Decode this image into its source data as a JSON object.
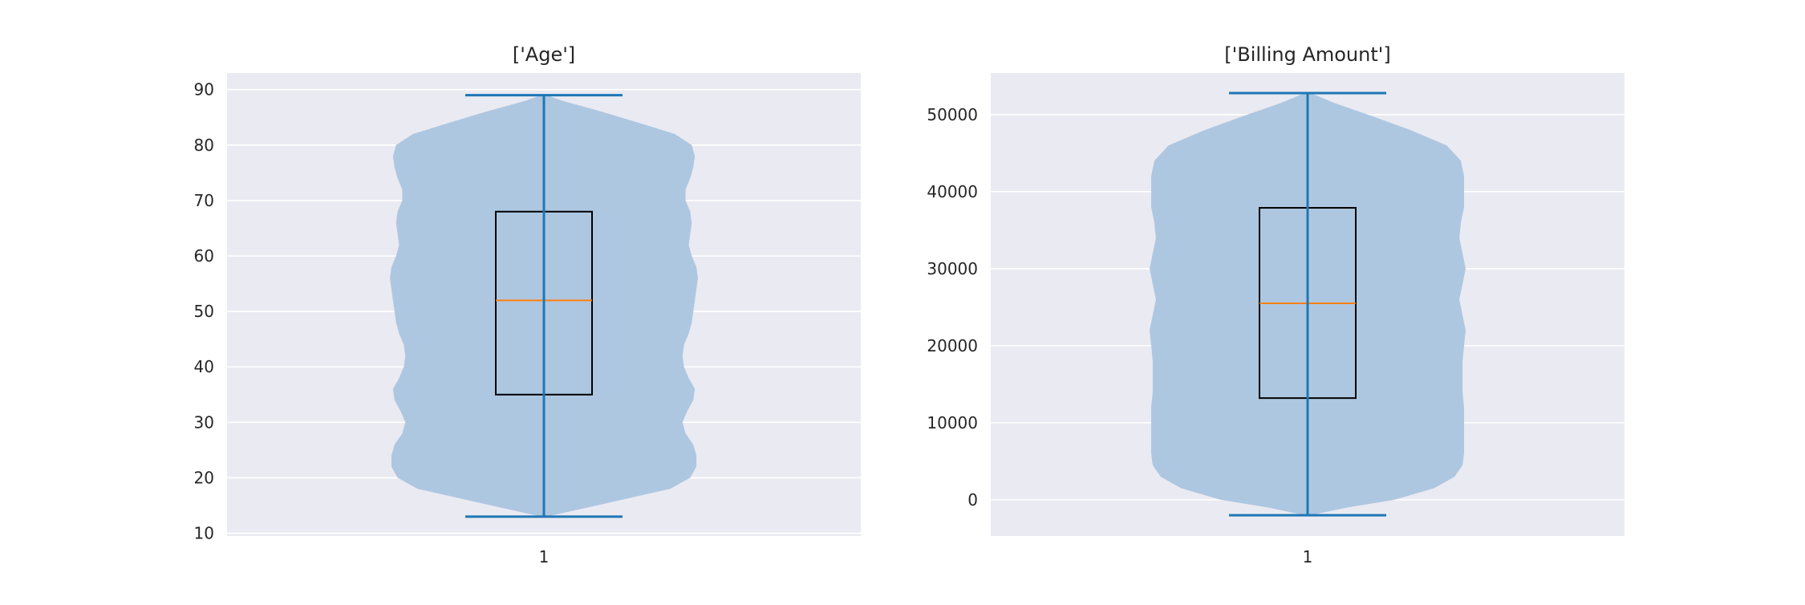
{
  "chart_data": [
    {
      "type": "violin",
      "title": "['Age']",
      "xlabel": "",
      "ylabel": "",
      "categories": [
        "1"
      ],
      "ylim": [
        9.5,
        93
      ],
      "yticks": [
        10,
        20,
        30,
        40,
        50,
        60,
        70,
        80,
        90
      ],
      "grid": true,
      "box": {
        "whisker_low": 13,
        "q1": 35,
        "median": 52,
        "q3": 68,
        "whisker_high": 89
      },
      "violin": {
        "min": 13,
        "max": 89,
        "profile": [
          [
            13,
            0.02
          ],
          [
            14,
            0.18
          ],
          [
            16,
            0.5
          ],
          [
            18,
            0.82
          ],
          [
            20,
            0.95
          ],
          [
            22,
            0.99
          ],
          [
            24,
            0.99
          ],
          [
            26,
            0.97
          ],
          [
            28,
            0.92
          ],
          [
            30,
            0.9
          ],
          [
            32,
            0.93
          ],
          [
            34,
            0.97
          ],
          [
            36,
            0.98
          ],
          [
            38,
            0.94
          ],
          [
            40,
            0.91
          ],
          [
            42,
            0.9
          ],
          [
            44,
            0.91
          ],
          [
            46,
            0.94
          ],
          [
            48,
            0.96
          ],
          [
            50,
            0.97
          ],
          [
            52,
            0.98
          ],
          [
            54,
            0.99
          ],
          [
            56,
            1.0
          ],
          [
            58,
            0.99
          ],
          [
            60,
            0.96
          ],
          [
            62,
            0.94
          ],
          [
            64,
            0.95
          ],
          [
            66,
            0.96
          ],
          [
            68,
            0.95
          ],
          [
            70,
            0.92
          ],
          [
            72,
            0.92
          ],
          [
            74,
            0.95
          ],
          [
            76,
            0.97
          ],
          [
            78,
            0.98
          ],
          [
            80,
            0.96
          ],
          [
            82,
            0.85
          ],
          [
            84,
            0.62
          ],
          [
            86,
            0.38
          ],
          [
            88,
            0.12
          ],
          [
            89,
            0.02
          ]
        ]
      },
      "colors": {
        "violin": "#aec7e1",
        "whisker": "#1f77b4",
        "median": "#ff7f0e",
        "box": "#000000"
      }
    },
    {
      "type": "violin",
      "title": "['Billing Amount']",
      "xlabel": "",
      "ylabel": "",
      "categories": [
        "1"
      ],
      "ylim": [
        -4700,
        55400
      ],
      "yticks": [
        0,
        10000,
        20000,
        30000,
        40000,
        50000
      ],
      "grid": true,
      "box": {
        "whisker_low": -2000,
        "q1": 13200,
        "median": 25500,
        "q3": 37900,
        "whisker_high": 52800
      },
      "violin": {
        "min": -2000,
        "max": 52800,
        "profile": [
          [
            -2000,
            0.02
          ],
          [
            -1000,
            0.25
          ],
          [
            0,
            0.55
          ],
          [
            1500,
            0.8
          ],
          [
            3000,
            0.93
          ],
          [
            4500,
            0.98
          ],
          [
            6000,
            0.99
          ],
          [
            8000,
            0.99
          ],
          [
            10000,
            0.99
          ],
          [
            12000,
            0.99
          ],
          [
            14000,
            0.98
          ],
          [
            16000,
            0.98
          ],
          [
            18000,
            0.98
          ],
          [
            20000,
            0.99
          ],
          [
            22000,
            1.0
          ],
          [
            24000,
            0.98
          ],
          [
            26000,
            0.96
          ],
          [
            28000,
            0.98
          ],
          [
            30000,
            1.0
          ],
          [
            32000,
            0.98
          ],
          [
            34000,
            0.96
          ],
          [
            36000,
            0.97
          ],
          [
            38000,
            0.99
          ],
          [
            40000,
            0.99
          ],
          [
            42000,
            0.99
          ],
          [
            44000,
            0.97
          ],
          [
            46000,
            0.88
          ],
          [
            48000,
            0.65
          ],
          [
            50000,
            0.38
          ],
          [
            51500,
            0.17
          ],
          [
            52800,
            0.02
          ]
        ]
      },
      "colors": {
        "violin": "#aec7e1",
        "whisker": "#1f77b4",
        "median": "#ff7f0e",
        "box": "#000000"
      }
    }
  ]
}
